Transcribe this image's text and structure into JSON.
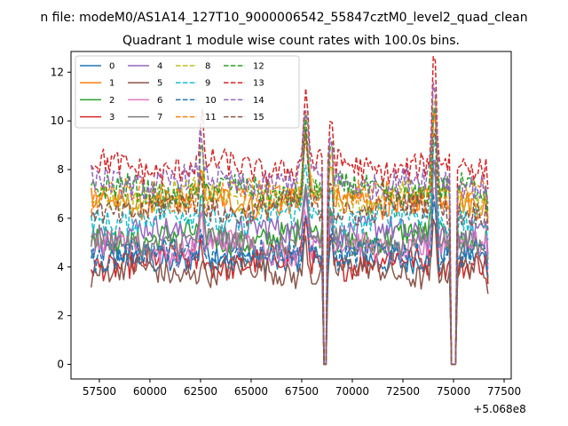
{
  "chart_data": {
    "type": "line",
    "suptitle": "n file: modeM0/AS1A14_127T10_9000006542_55847cztM0_level2_quad_clean",
    "title": "Quadrant 1 module wise count rates with 100.0s bins.",
    "xlabel": "",
    "ylabel": "",
    "x_offset_label": "+5.068e8",
    "xlim": [
      56100,
      77850
    ],
    "ylim": [
      -0.6,
      12.85
    ],
    "x_ticks": [
      57500,
      60000,
      62500,
      65000,
      67500,
      70000,
      72500,
      75000,
      77500
    ],
    "x_tick_labels": [
      "57500",
      "60000",
      "62500",
      "65000",
      "67500",
      "70000",
      "72500",
      "75000",
      "77500"
    ],
    "y_ticks": [
      0,
      2,
      4,
      6,
      8,
      10,
      12
    ],
    "y_tick_labels": [
      "0",
      "2",
      "4",
      "6",
      "8",
      "10",
      "12"
    ],
    "x_start": 57100,
    "x_end": 76700,
    "bin_width": 100,
    "gaps": [
      [
        68550,
        68750
      ],
      [
        74900,
        75100
      ]
    ],
    "peaks": [
      {
        "x": 62550,
        "amp": 1.8,
        "width": 90
      },
      {
        "x": 67700,
        "amp": 2.6,
        "width": 160
      },
      {
        "x": 68950,
        "amp": 1.9,
        "width": 90
      },
      {
        "x": 74050,
        "amp": 3.7,
        "width": 140
      }
    ],
    "legend_position": "upper-left",
    "series": [
      {
        "name": "0",
        "color": "#1f77b4",
        "dashed": false,
        "base": 4.4
      },
      {
        "name": "1",
        "color": "#ff7f0e",
        "dashed": false,
        "base": 6.7
      },
      {
        "name": "2",
        "color": "#2ca02c",
        "dashed": false,
        "base": 5.2
      },
      {
        "name": "3",
        "color": "#d62728",
        "dashed": false,
        "base": 4.2
      },
      {
        "name": "4",
        "color": "#9467bd",
        "dashed": false,
        "base": 5.4
      },
      {
        "name": "5",
        "color": "#8c564b",
        "dashed": false,
        "base": 3.8
      },
      {
        "name": "6",
        "color": "#e377c2",
        "dashed": false,
        "base": 4.8
      },
      {
        "name": "7",
        "color": "#7f7f7f",
        "dashed": false,
        "base": 5.0
      },
      {
        "name": "8",
        "color": "#bcbd22",
        "dashed": true,
        "base": 6.9
      },
      {
        "name": "9",
        "color": "#17becf",
        "dashed": true,
        "base": 6.0
      },
      {
        "name": "10",
        "color": "#1f77b4",
        "dashed": true,
        "base": 4.5
      },
      {
        "name": "11",
        "color": "#ff7f0e",
        "dashed": true,
        "base": 6.9
      },
      {
        "name": "12",
        "color": "#2ca02c",
        "dashed": true,
        "base": 7.1
      },
      {
        "name": "13",
        "color": "#d62728",
        "dashed": true,
        "base": 8.1
      },
      {
        "name": "14",
        "color": "#9467bd",
        "dashed": true,
        "base": 7.5
      },
      {
        "name": "15",
        "color": "#8c564b",
        "dashed": true,
        "base": 6.4
      }
    ]
  }
}
